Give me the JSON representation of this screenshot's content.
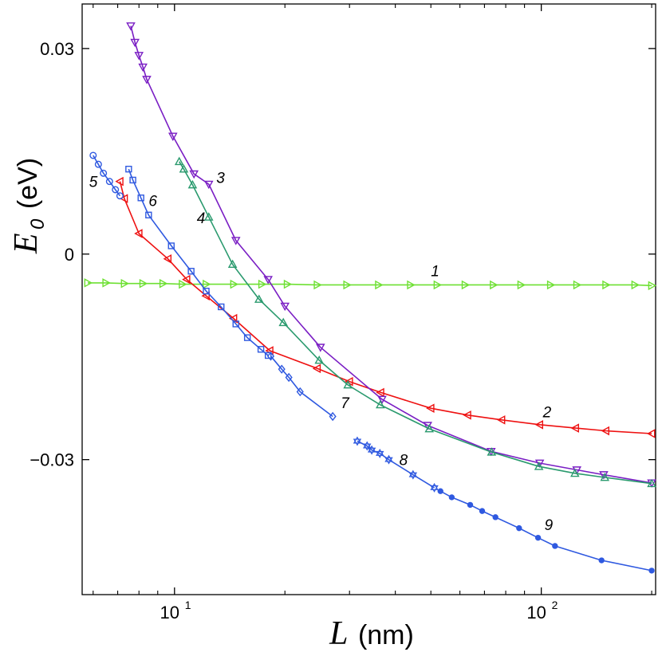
{
  "chart_data": {
    "type": "line",
    "x_scale": "log",
    "xlim": [
      5.6,
      205
    ],
    "ylim": [
      -0.0497,
      0.0365
    ],
    "xticks": [
      {
        "value": 10,
        "base": "10",
        "exp": "1"
      },
      {
        "value": 100,
        "base": "10",
        "exp": "2"
      }
    ],
    "yticks": [
      {
        "value": 0.03,
        "label": "0.03"
      },
      {
        "value": 0,
        "label": "0"
      },
      {
        "value": -0.03,
        "label": "−0.03"
      }
    ],
    "xlabel": {
      "symbol": "L",
      "unit": "(nm)"
    },
    "ylabel": {
      "symbol": "E",
      "subscript": "0",
      "unit": "(eV)"
    },
    "series": [
      {
        "name": "1",
        "color": "#6ee033",
        "marker": "triangle-right",
        "label_at": [
          50,
          -0.0032
        ],
        "x": [
          5.8,
          6.5,
          7.3,
          8.2,
          9.3,
          10.5,
          12.2,
          14.5,
          17.3,
          20.3,
          24.5,
          29.5,
          36,
          44,
          52,
          62,
          74,
          88,
          106,
          125,
          150,
          180,
          200
        ],
        "y": [
          -0.0042,
          -0.0042,
          -0.0043,
          -0.0043,
          -0.0043,
          -0.0044,
          -0.0044,
          -0.0044,
          -0.0044,
          -0.0044,
          -0.0045,
          -0.0045,
          -0.0045,
          -0.0045,
          -0.0045,
          -0.0045,
          -0.0045,
          -0.0045,
          -0.0045,
          -0.0045,
          -0.0045,
          -0.0045,
          -0.0046
        ]
      },
      {
        "name": "2",
        "color": "#ee1111",
        "marker": "triangle-left",
        "label_at": [
          101,
          -0.0238
        ],
        "x": [
          7.1,
          7.3,
          8.0,
          9.6,
          10.8,
          12.2,
          14.5,
          18.2,
          24.5,
          30,
          36.5,
          50,
          63,
          78,
          99,
          124,
          150,
          200
        ],
        "y": [
          0.0106,
          0.0081,
          0.003,
          -0.0007,
          -0.0037,
          -0.0061,
          -0.0094,
          -0.0141,
          -0.0167,
          -0.0186,
          -0.0202,
          -0.0225,
          -0.0235,
          -0.0242,
          -0.0249,
          -0.0254,
          -0.0258,
          -0.0262
        ]
      },
      {
        "name": "3",
        "color": "#7a1ec4",
        "marker": "triangle-down",
        "label_at": [
          13.0,
          0.0104
        ],
        "x": [
          7.6,
          7.8,
          8.0,
          8.2,
          8.4,
          9.9,
          11.3,
          12.4,
          14.7,
          18.0,
          20.0,
          25.0,
          36.8,
          49.0,
          73.0,
          99.0,
          125.0,
          148.0,
          200.0
        ],
        "y": [
          0.0333,
          0.0309,
          0.029,
          0.0273,
          0.0255,
          0.0172,
          0.0117,
          0.0102,
          0.002,
          -0.0037,
          -0.0076,
          -0.0136,
          -0.0212,
          -0.025,
          -0.0288,
          -0.0305,
          -0.0315,
          -0.0322,
          -0.0334
        ]
      },
      {
        "name": "4",
        "color": "#2a9a6e",
        "marker": "triangle-up",
        "label_at": [
          11.5,
          0.0045
        ],
        "x": [
          10.3,
          10.6,
          11.2,
          12.4,
          14.4,
          17.0,
          19.8,
          24.8,
          29.7,
          36.4,
          49.5,
          73.2,
          98.5,
          123.5,
          149.0,
          200.0
        ],
        "y": [
          0.0135,
          0.0124,
          0.0101,
          0.0054,
          -0.0015,
          -0.0066,
          -0.01,
          -0.0155,
          -0.0191,
          -0.022,
          -0.0255,
          -0.0289,
          -0.031,
          -0.032,
          -0.0326,
          -0.0335
        ]
      },
      {
        "name": "5",
        "color": "#2f59e0",
        "marker": "circle",
        "label_at": [
          5.85,
          0.0098
        ],
        "x": [
          6.0,
          6.2,
          6.4,
          6.65,
          6.9,
          7.1
        ],
        "y": [
          0.0144,
          0.0131,
          0.0118,
          0.0106,
          0.0094,
          0.0085
        ]
      },
      {
        "name": "6",
        "color": "#2f59e0",
        "marker": "square",
        "label_at": [
          8.5,
          0.007
        ],
        "x": [
          7.5,
          7.7,
          8.1,
          8.5,
          9.8,
          11.1,
          12.2,
          13.4,
          14.7,
          15.8,
          17.2,
          18.0
        ],
        "y": [
          0.0124,
          0.0108,
          0.0082,
          0.0057,
          0.0012,
          -0.0025,
          -0.0054,
          -0.0077,
          -0.0102,
          -0.0122,
          -0.0139,
          -0.0148
        ]
      },
      {
        "name": "7",
        "color": "#2f59e0",
        "marker": "diamond",
        "label_at": [
          28.4,
          -0.0225
        ],
        "x": [
          18.3,
          19.6,
          20.5,
          22.0,
          27.0
        ],
        "y": [
          -0.0149,
          -0.0168,
          -0.018,
          -0.0201,
          -0.0237
        ]
      },
      {
        "name": "8",
        "color": "#2f59e0",
        "marker": "hexagram",
        "label_at": [
          41.0,
          -0.0308
        ],
        "x": [
          31.5,
          33.5,
          34.5,
          36.3,
          38.4,
          44.7,
          51.1
        ],
        "y": [
          -0.0273,
          -0.028,
          -0.0286,
          -0.0291,
          -0.03,
          -0.0322,
          -0.0341
        ]
      },
      {
        "name": "9",
        "color": "#2f59e0",
        "marker": "dot",
        "label_at": [
          102,
          -0.0403
        ],
        "x": [
          53.1,
          57.0,
          64.0,
          69.0,
          75.0,
          87.0,
          98.0,
          109.0,
          146.0,
          200.0
        ],
        "y": [
          -0.0346,
          -0.0355,
          -0.0366,
          -0.0375,
          -0.0384,
          -0.04,
          -0.0414,
          -0.0426,
          -0.0447,
          -0.0462
        ]
      }
    ]
  }
}
